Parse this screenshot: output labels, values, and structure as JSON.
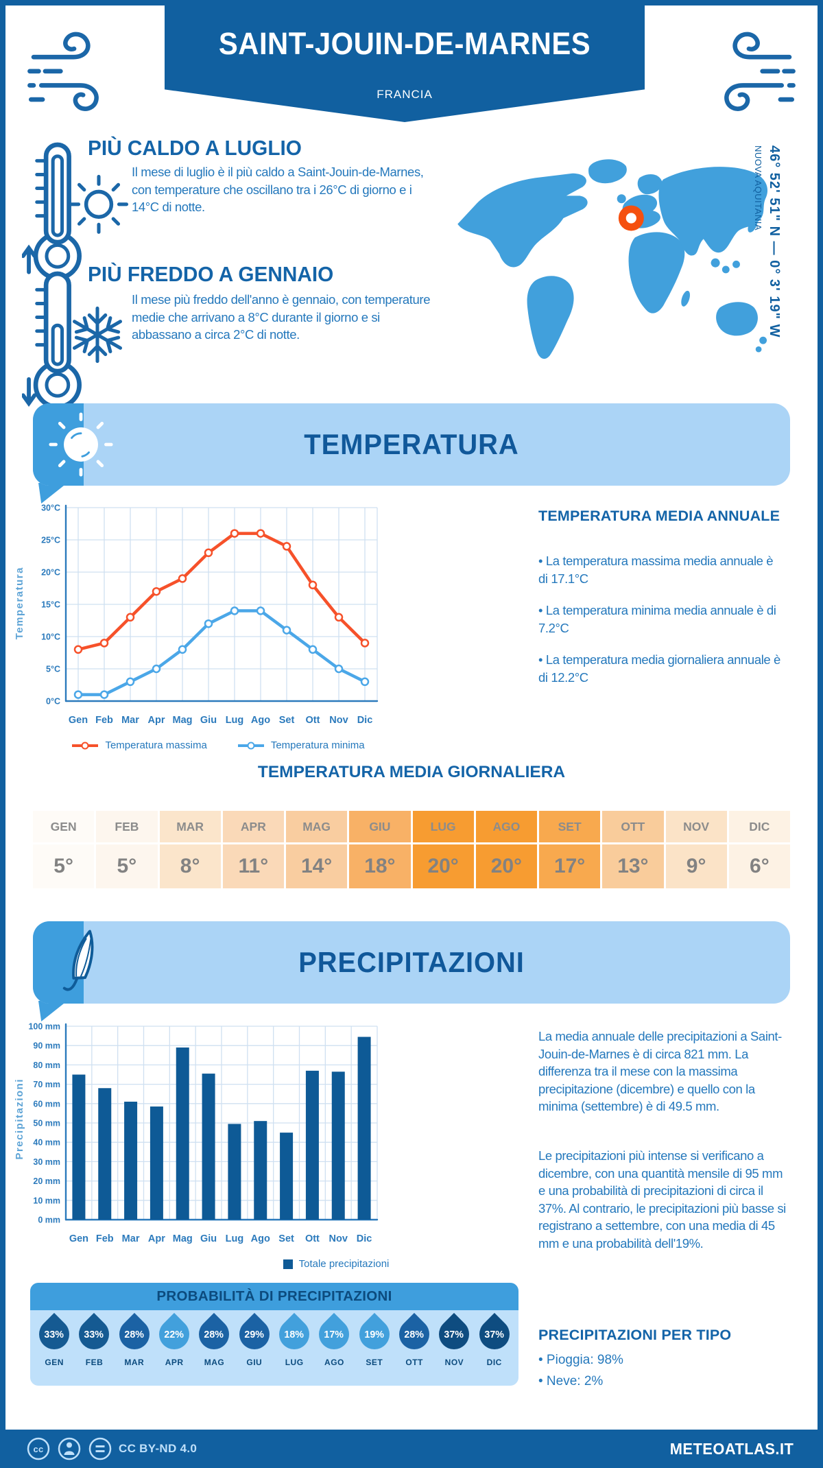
{
  "header": {
    "title": "SAINT-JOUIN-DE-MARNES",
    "subtitle": "FRANCIA"
  },
  "location": {
    "coordinates": "46° 52' 51\" N — 0° 3' 19\" W",
    "region": "NUOVA AQUITANIA"
  },
  "highlight_hot": {
    "title": "PIÙ CALDO A LUGLIO",
    "text": "Il mese di luglio è il più caldo a Saint-Jouin-de-Marnes, con temperature che oscillano tra i 26°C di giorno e i 14°C di notte."
  },
  "highlight_cold": {
    "title": "PIÙ FREDDO A GENNAIO",
    "text": "Il mese più freddo dell'anno è gennaio, con temperature medie che arrivano a 8°C durante il giorno e si abbassano a circa 2°C di notte."
  },
  "temperature_banner": {
    "title": "TEMPERATURA"
  },
  "precipitation_banner": {
    "title": "PRECIPITAZIONI"
  },
  "chart_data": [
    {
      "type": "line",
      "categories": [
        "Gen",
        "Feb",
        "Mar",
        "Apr",
        "Mag",
        "Giu",
        "Lug",
        "Ago",
        "Set",
        "Ott",
        "Nov",
        "Dic"
      ],
      "series": [
        {
          "name": "Temperatura massima",
          "color": "#F6512A",
          "values": [
            8,
            9,
            13,
            17,
            19,
            23,
            26,
            26,
            24,
            18,
            13,
            9
          ]
        },
        {
          "name": "Temperatura minima",
          "color": "#4BA7E8",
          "values": [
            1,
            1,
            3,
            5,
            8,
            12,
            14,
            14,
            11,
            8,
            5,
            3
          ]
        }
      ],
      "title": "",
      "xlabel": "",
      "ylabel": "Temperatura",
      "ylim": [
        0,
        30
      ],
      "ytick_step": 5,
      "ytick_suffix": "°C",
      "grid": true,
      "legend_position": "bottom"
    },
    {
      "type": "bar",
      "categories": [
        "Gen",
        "Feb",
        "Mar",
        "Apr",
        "Mag",
        "Giu",
        "Lug",
        "Ago",
        "Set",
        "Ott",
        "Nov",
        "Dic"
      ],
      "series": [
        {
          "name": "Totale precipitazioni",
          "color": "#0E5A96",
          "values": [
            75,
            68,
            61,
            58.5,
            89,
            75.5,
            49.5,
            51,
            45,
            77,
            76.5,
            94.5
          ]
        }
      ],
      "title": "",
      "xlabel": "",
      "ylabel": "Precipitazioni",
      "ylim": [
        0,
        100
      ],
      "ytick_step": 10,
      "ytick_suffix": " mm",
      "grid": true,
      "legend_position": "bottom"
    }
  ],
  "temp_annual": {
    "title": "TEMPERATURA MEDIA ANNUALE",
    "bullets": [
      "• La temperatura massima media annuale è di 17.1°C",
      "• La temperatura minima media annuale è di 7.2°C",
      "• La temperatura media giornaliera annuale è di 12.2°C"
    ]
  },
  "daily_table": {
    "title": "TEMPERATURA MEDIA GIORNALIERA",
    "months": [
      "GEN",
      "FEB",
      "MAR",
      "APR",
      "MAG",
      "GIU",
      "LUG",
      "AGO",
      "SET",
      "OTT",
      "NOV",
      "DIC"
    ],
    "values": [
      "5°",
      "5°",
      "8°",
      "11°",
      "14°",
      "18°",
      "20°",
      "20°",
      "17°",
      "13°",
      "9°",
      "6°"
    ],
    "cell_colors": [
      "#FEFBF7",
      "#FDF6EE",
      "#FBE5CB",
      "#FAD9B8",
      "#F9CDA0",
      "#F8B166",
      "#F79C31",
      "#F79C31",
      "#F8A94E",
      "#F9CC9B",
      "#FBE3C7",
      "#FDF2E4"
    ]
  },
  "precip_text": {
    "p1": "La media annuale delle precipitazioni a Saint-Jouin-de-Marnes è di circa 821 mm. La differenza tra il mese con la massima precipitazione (dicembre) e quello con la minima (settembre) è di 49.5 mm.",
    "p2": "Le precipitazioni più intense si verificano a dicembre, con una quantità mensile di 95 mm e una probabilità di precipitazioni di circa il 37%. Al contrario, le precipitazioni più basse si registrano a settembre, con una media di 45 mm e una probabilità dell'19%."
  },
  "probability": {
    "title": "PROBABILITÀ DI PRECIPITAZIONI",
    "months": [
      "GEN",
      "FEB",
      "MAR",
      "APR",
      "MAG",
      "GIU",
      "LUG",
      "AGO",
      "SET",
      "OTT",
      "NOV",
      "DIC"
    ],
    "values": [
      "33%",
      "33%",
      "28%",
      "22%",
      "28%",
      "29%",
      "18%",
      "17%",
      "19%",
      "28%",
      "37%",
      "37%"
    ],
    "colors": [
      "#155A92",
      "#155A92",
      "#1B62A4",
      "#42A0DC",
      "#1B62A4",
      "#1B62A4",
      "#42A0DC",
      "#42A0DC",
      "#42A0DC",
      "#1B62A4",
      "#0E4C80",
      "#0E4C80"
    ]
  },
  "precip_type": {
    "title": "PRECIPITAZIONI PER TIPO",
    "bullets": [
      "• Pioggia: 98%",
      "• Neve: 2%"
    ]
  },
  "footer": {
    "license": "CC BY-ND 4.0",
    "site": "METEOATLAS.IT"
  }
}
